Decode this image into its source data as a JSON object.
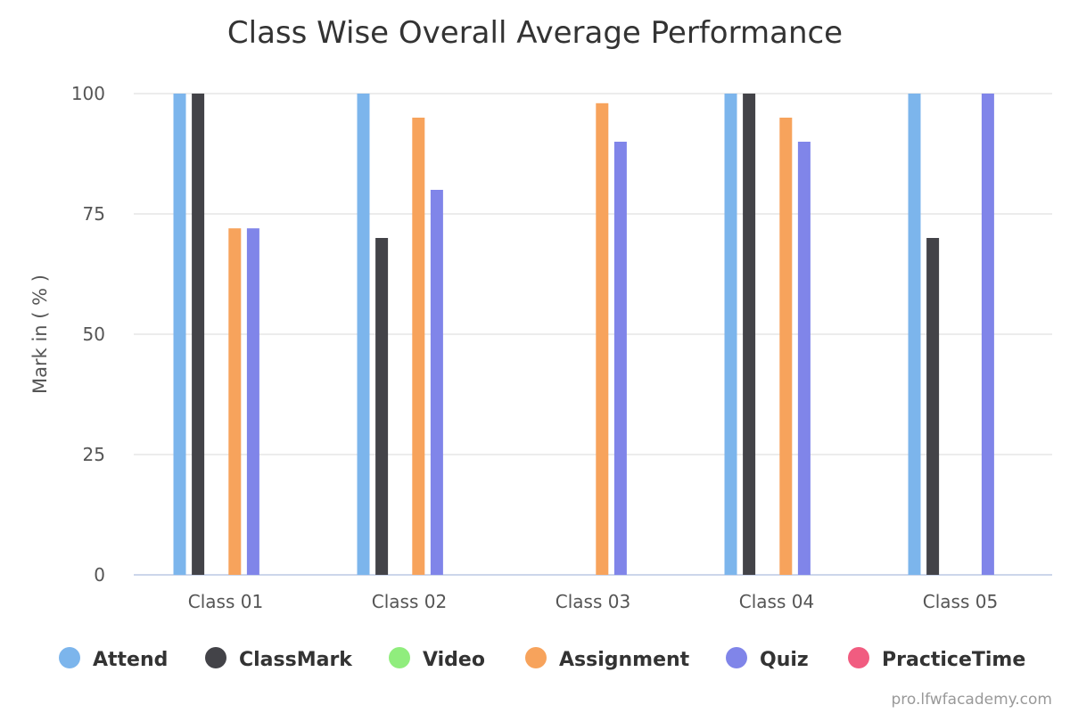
{
  "chart_data": {
    "type": "bar",
    "title": "Class Wise Overall Average Performance",
    "ylabel": "Mark in ( % )",
    "xlabel": "",
    "categories": [
      "Class 01",
      "Class 02",
      "Class 03",
      "Class 04",
      "Class 05"
    ],
    "ylim": [
      0,
      100
    ],
    "yticks": [
      0,
      25,
      50,
      75,
      100
    ],
    "grid": true,
    "legend_position": "bottom",
    "series": [
      {
        "name": "Attend",
        "color": "#7cb5ec",
        "values": [
          100,
          100,
          0,
          100,
          100
        ]
      },
      {
        "name": "ClassMark",
        "color": "#434348",
        "values": [
          100,
          70,
          0,
          100,
          70
        ]
      },
      {
        "name": "Video",
        "color": "#90ed7d",
        "values": [
          0,
          0,
          0,
          0,
          0
        ]
      },
      {
        "name": "Assignment",
        "color": "#f7a35c",
        "values": [
          72,
          95,
          98,
          95,
          0
        ]
      },
      {
        "name": "Quiz",
        "color": "#8085e9",
        "values": [
          72,
          80,
          90,
          90,
          100
        ]
      },
      {
        "name": "PracticeTime",
        "color": "#f15c80",
        "values": [
          0,
          0,
          0,
          0,
          0
        ]
      }
    ]
  },
  "credit": "pro.lfwfacademy.com"
}
